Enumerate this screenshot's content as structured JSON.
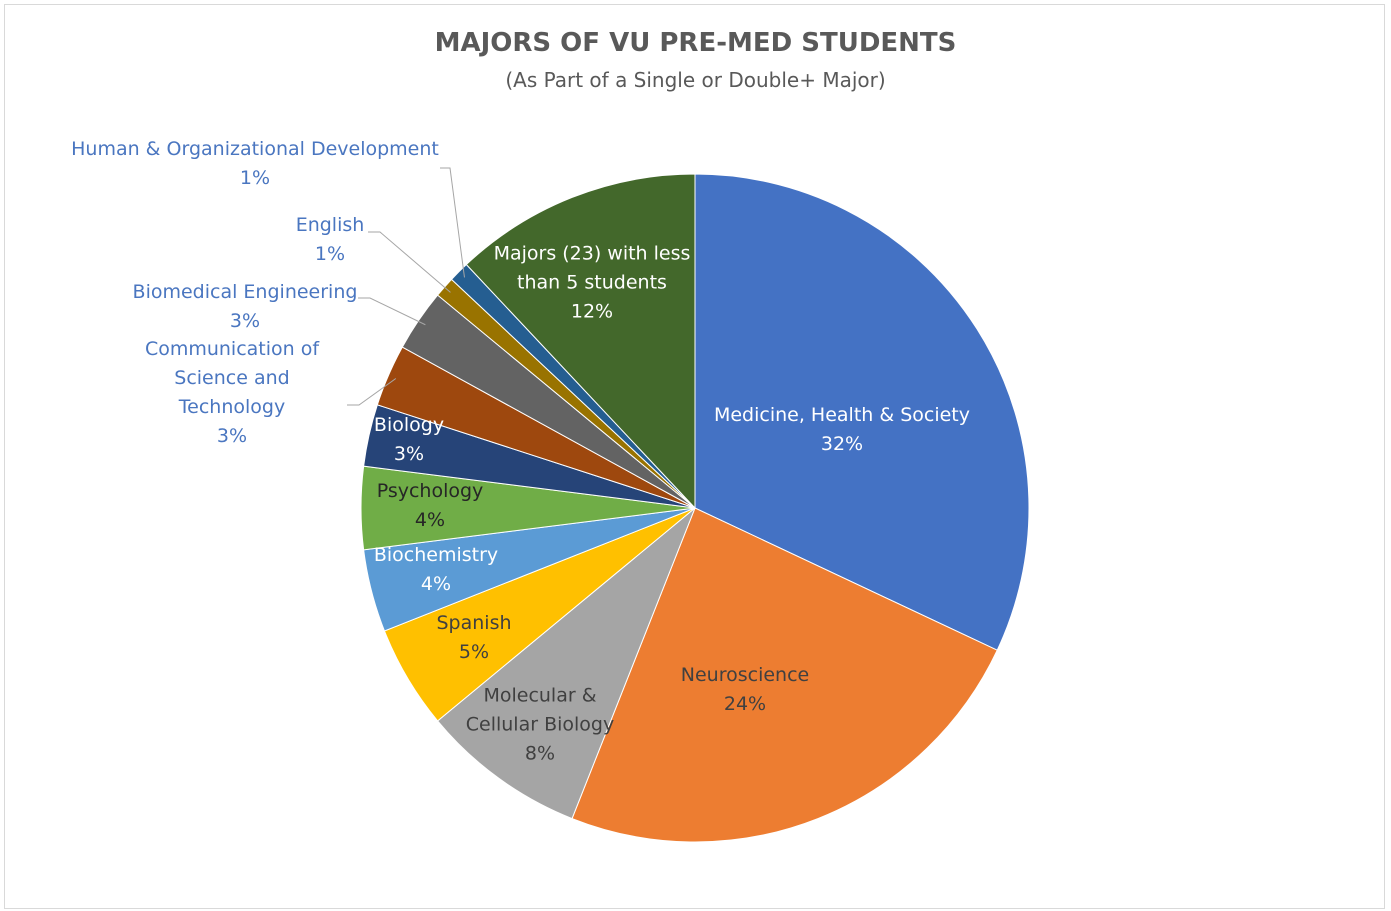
{
  "chart_data": {
    "type": "pie",
    "title": "MAJORS OF VU PRE-MED STUDENTS",
    "subtitle": "(As Part of a Single or Double+ Major)",
    "categories": [
      "Medicine, Health & Society",
      "Neuroscience",
      "Molecular & Cellular Biology",
      "Spanish",
      "Biochemistry",
      "Psychology",
      "Biology",
      "Communication of Science and Technology",
      "Biomedical Engineering",
      "English",
      "Human & Organizational Development",
      "Majors (23) with less than 5 students"
    ],
    "values": [
      32,
      24,
      8,
      5,
      4,
      4,
      3,
      3,
      3,
      1,
      1,
      12
    ],
    "value_labels": [
      "32%",
      "24%",
      "8%",
      "5%",
      "4%",
      "4%",
      "3%",
      "3%",
      "3%",
      "1%",
      "1%",
      "12%"
    ],
    "colors": [
      "#4472c4",
      "#ed7d31",
      "#a5a5a5",
      "#ffc000",
      "#5b9bd5",
      "#70ad47",
      "#264478",
      "#9e480e",
      "#636363",
      "#997300",
      "#255e91",
      "#43682b"
    ]
  }
}
